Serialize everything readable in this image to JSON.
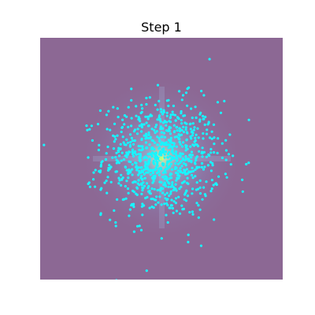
{
  "chart_data": {
    "type": "scatter",
    "title": "Step 1",
    "xlabel": "",
    "ylabel": "",
    "xlim": [
      -1,
      1
    ],
    "ylim": [
      -1,
      1
    ],
    "grid": false,
    "axes_visible": false,
    "background_color": "#8c6894",
    "point_color": "#19f5ff",
    "glow_color": "#7fa8d8",
    "center_color": "#d9ff66",
    "point_count": 900,
    "spread_sigma": 0.24,
    "center": [
      0,
      0
    ]
  }
}
